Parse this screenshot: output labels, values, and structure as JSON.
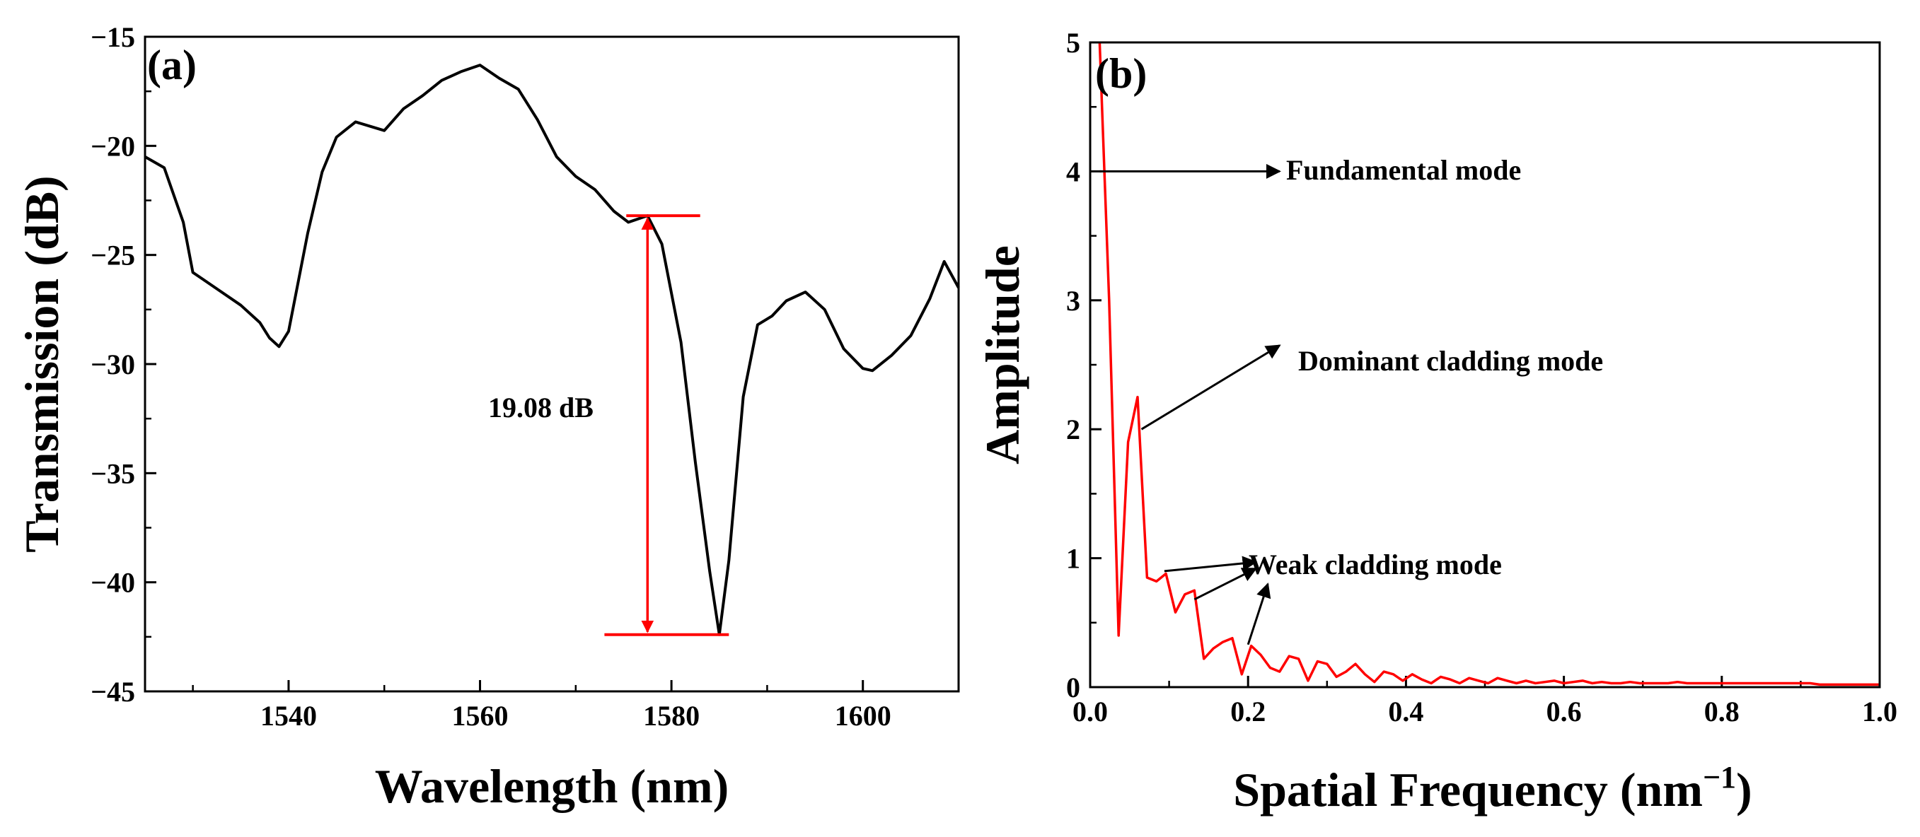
{
  "chart_data": [
    {
      "type": "line",
      "panel_label": "(a)",
      "xlabel": "Wavelength (nm)",
      "ylabel": "Transmission (dB)",
      "xlim": [
        1525,
        1610
      ],
      "ylim": [
        -45,
        -15
      ],
      "xticks": [
        1540,
        1560,
        1580,
        1600
      ],
      "xtick_labels": [
        "1540",
        "1560",
        "1580",
        "1600"
      ],
      "yticks": [
        -45,
        -40,
        -35,
        -30,
        -25,
        -20,
        -15
      ],
      "ytick_labels": [
        "−45",
        "−40",
        "−35",
        "−30",
        "−25",
        "−20",
        "−15"
      ],
      "series": [
        {
          "name": "Transmission",
          "color": "#000000",
          "x": [
            1525,
            1527,
            1529,
            1530,
            1531,
            1533,
            1535,
            1537,
            1538,
            1539,
            1540,
            1542,
            1543.5,
            1545,
            1547,
            1548.5,
            1550,
            1552,
            1554,
            1556,
            1558,
            1560,
            1562,
            1564,
            1566,
            1568,
            1570,
            1572,
            1574,
            1575.5,
            1577.5,
            1579,
            1581,
            1582.5,
            1584,
            1585,
            1586,
            1587.5,
            1589,
            1590.5,
            1592,
            1594,
            1596,
            1598,
            1600,
            1601,
            1603,
            1605,
            1607,
            1608.5,
            1610
          ],
          "y": [
            -20.5,
            -21.0,
            -23.5,
            -25.8,
            -26.1,
            -26.7,
            -27.3,
            -28.1,
            -28.8,
            -29.2,
            -28.5,
            -24.0,
            -21.2,
            -19.6,
            -18.9,
            -19.1,
            -19.3,
            -18.3,
            -17.7,
            -17.0,
            -16.6,
            -16.3,
            -16.9,
            -17.4,
            -18.8,
            -20.5,
            -21.4,
            -22.0,
            -23.0,
            -23.5,
            -23.2,
            -24.5,
            -29.0,
            -34.5,
            -39.5,
            -42.4,
            -39.0,
            -31.5,
            -28.2,
            -27.8,
            -27.1,
            -26.7,
            -27.5,
            -29.3,
            -30.2,
            -30.3,
            -29.6,
            -28.7,
            -27.0,
            -25.3,
            -26.5
          ]
        }
      ],
      "annotations": [
        {
          "text": "19.08 dB",
          "type": "double-arrow",
          "x": 1577.5,
          "y_top": -23.2,
          "y_bottom": -42.4,
          "color": "#ff0000"
        }
      ]
    },
    {
      "type": "line",
      "panel_label": "(b)",
      "xlabel": "Spatial Frequency (nm",
      "xlabel_superscript": "−1",
      "xlabel_suffix": ")",
      "ylabel": "Amplitude",
      "xlim": [
        0,
        1.0
      ],
      "ylim": [
        0,
        5
      ],
      "xticks": [
        0.0,
        0.2,
        0.4,
        0.6,
        0.8,
        1.0
      ],
      "xtick_labels": [
        "0.0",
        "0.2",
        "0.4",
        "0.6",
        "0.8",
        "1.0"
      ],
      "yticks": [
        0,
        1,
        2,
        3,
        4,
        5
      ],
      "ytick_labels": [
        "0",
        "1",
        "2",
        "3",
        "4",
        "5"
      ],
      "series": [
        {
          "name": "Amplitude",
          "color": "#ff0000",
          "x": [
            0.012,
            0.024,
            0.036,
            0.048,
            0.06,
            0.072,
            0.084,
            0.096,
            0.108,
            0.12,
            0.132,
            0.144,
            0.156,
            0.168,
            0.18,
            0.192,
            0.204,
            0.216,
            0.228,
            0.24,
            0.252,
            0.264,
            0.276,
            0.288,
            0.3,
            0.312,
            0.324,
            0.336,
            0.348,
            0.36,
            0.372,
            0.384,
            0.396,
            0.408,
            0.42,
            0.432,
            0.444,
            0.456,
            0.468,
            0.48,
            0.492,
            0.504,
            0.516,
            0.528,
            0.54,
            0.552,
            0.564,
            0.576,
            0.588,
            0.6,
            0.612,
            0.624,
            0.636,
            0.648,
            0.66,
            0.672,
            0.684,
            0.696,
            0.708,
            0.72,
            0.732,
            0.744,
            0.756,
            0.768,
            0.78,
            0.792,
            0.804,
            0.816,
            0.828,
            0.84,
            0.852,
            0.864,
            0.876,
            0.888,
            0.9,
            0.912,
            0.924,
            0.936,
            0.948,
            0.96,
            0.972,
            0.984,
            1.0
          ],
          "y": [
            5.0,
            3.0,
            0.4,
            1.9,
            2.25,
            0.85,
            0.82,
            0.88,
            0.58,
            0.72,
            0.75,
            0.22,
            0.3,
            0.35,
            0.38,
            0.1,
            0.32,
            0.25,
            0.15,
            0.12,
            0.24,
            0.22,
            0.05,
            0.2,
            0.18,
            0.08,
            0.12,
            0.18,
            0.1,
            0.04,
            0.12,
            0.1,
            0.05,
            0.1,
            0.06,
            0.03,
            0.08,
            0.06,
            0.03,
            0.07,
            0.05,
            0.03,
            0.07,
            0.05,
            0.03,
            0.05,
            0.03,
            0.04,
            0.05,
            0.03,
            0.04,
            0.05,
            0.03,
            0.04,
            0.03,
            0.03,
            0.04,
            0.03,
            0.03,
            0.03,
            0.03,
            0.04,
            0.03,
            0.03,
            0.03,
            0.03,
            0.03,
            0.03,
            0.03,
            0.03,
            0.03,
            0.03,
            0.03,
            0.03,
            0.03,
            0.03,
            0.02,
            0.02,
            0.02,
            0.02,
            0.02,
            0.02,
            0.02
          ]
        }
      ],
      "annotations": [
        {
          "text": "Fundamental mode",
          "arrow_from": [
            0.012,
            4.0
          ],
          "arrow_to": [
            0.24,
            4.0
          ]
        },
        {
          "text": "Dominant cladding mode",
          "arrow_from": [
            0.065,
            2.0
          ],
          "arrow_to": [
            0.24,
            2.65
          ]
        },
        {
          "text": "Weak cladding mode",
          "arrows": [
            {
              "from": [
                0.094,
                0.9
              ],
              "to": [
                0.21,
                0.97
              ]
            },
            {
              "from": [
                0.132,
                0.68
              ],
              "to": [
                0.21,
                0.92
              ]
            },
            {
              "from": [
                0.2,
                0.33
              ],
              "to": [
                0.225,
                0.8
              ]
            }
          ]
        }
      ]
    }
  ]
}
